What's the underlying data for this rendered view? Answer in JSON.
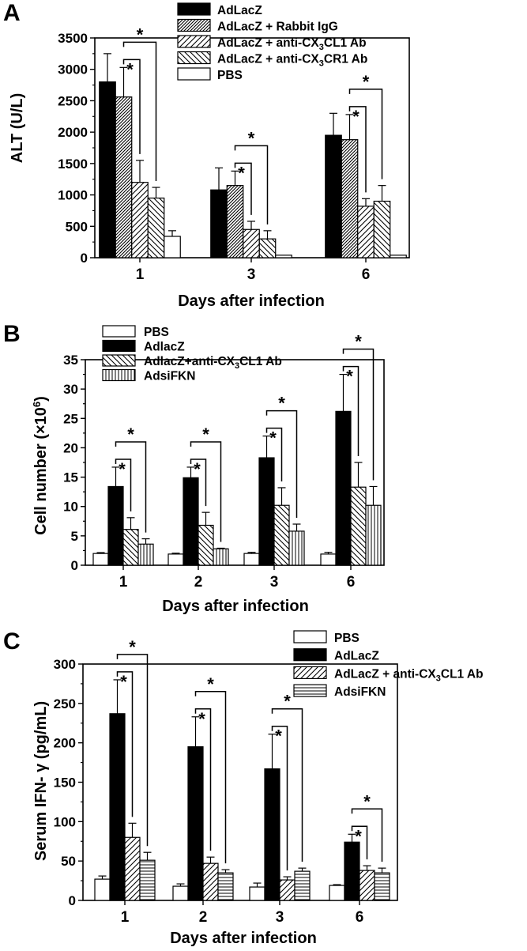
{
  "chart_data": [
    {
      "type": "bar",
      "panel": "A",
      "title": "",
      "xlabel": "Days after infection",
      "ylabel": "ALT (U/L)",
      "ylim": [
        0,
        3500
      ],
      "yticks": [
        0,
        500,
        1000,
        1500,
        2000,
        2500,
        3000,
        3500
      ],
      "categories": [
        "1",
        "3",
        "6"
      ],
      "legend_position": "top-right",
      "series": [
        {
          "name": "AdLacZ",
          "pattern": "solid",
          "values": [
            2800,
            1080,
            1950
          ],
          "errors": [
            450,
            350,
            350
          ]
        },
        {
          "name": "AdLacZ + Rabbit IgG",
          "pattern": "dense-hatch",
          "values": [
            2560,
            1150,
            1880
          ],
          "errors": [
            470,
            230,
            400
          ]
        },
        {
          "name": "AdLacZ + anti-CX3CL1 Ab",
          "sub_parts": [
            "AdLacZ + anti-CX",
            "3",
            "CL1 Ab"
          ],
          "pattern": "hatch-fwd",
          "values": [
            1200,
            450,
            820
          ],
          "errors": [
            350,
            130,
            120
          ]
        },
        {
          "name": "AdLacZ + anti-CX3CR1 Ab",
          "sub_parts": [
            "AdLacZ + anti-CX",
            "3",
            "CR1 Ab"
          ],
          "pattern": "hatch-back",
          "values": [
            950,
            300,
            900
          ],
          "errors": [
            170,
            130,
            250
          ]
        },
        {
          "name": "PBS",
          "pattern": "empty",
          "values": [
            340,
            40,
            40
          ],
          "errors": [
            90,
            0,
            0
          ]
        }
      ],
      "significance": [
        {
          "category": 0,
          "pairs": [
            [
              1,
              2
            ],
            [
              1,
              3
            ]
          ],
          "label": "*"
        },
        {
          "category": 1,
          "pairs": [
            [
              1,
              2
            ],
            [
              1,
              3
            ]
          ],
          "label": "*"
        },
        {
          "category": 2,
          "pairs": [
            [
              1,
              2
            ],
            [
              1,
              3
            ]
          ],
          "label": "*"
        }
      ]
    },
    {
      "type": "bar",
      "panel": "B",
      "title": "",
      "xlabel": "Days after infection",
      "ylabel": "Cell number (×10",
      "ylabel_sup": "6",
      "ylabel_end": ")",
      "ylim": [
        0,
        35
      ],
      "yticks": [
        0,
        5,
        10,
        15,
        20,
        25,
        30,
        35
      ],
      "categories": [
        "1",
        "2",
        "3",
        "6"
      ],
      "legend_position": "top-left",
      "series": [
        {
          "name": "PBS",
          "pattern": "empty",
          "values": [
            2.0,
            1.9,
            2.0,
            1.9
          ],
          "errors": [
            0.15,
            0.15,
            0.2,
            0.3
          ]
        },
        {
          "name": "AdlacZ",
          "pattern": "solid",
          "values": [
            13.4,
            14.9,
            18.3,
            26.2
          ],
          "errors": [
            3.3,
            1.8,
            3.7,
            6.3
          ]
        },
        {
          "name": "AdlacZ+anti-CX3CL1 Ab",
          "sub_parts": [
            "AdlacZ+anti-CX",
            "3",
            "CL1 Ab"
          ],
          "pattern": "hatch-back",
          "values": [
            6.1,
            6.8,
            10.2,
            13.3
          ],
          "errors": [
            2.0,
            2.2,
            3.0,
            4.2
          ]
        },
        {
          "name": "AdsiFKN",
          "pattern": "vertical",
          "values": [
            3.6,
            2.8,
            5.8,
            10.2
          ],
          "errors": [
            0.9,
            0.1,
            1.2,
            3.2
          ]
        }
      ],
      "significance": [
        {
          "category": 0,
          "pairs": [
            [
              1,
              2
            ],
            [
              1,
              3
            ]
          ],
          "label": "*"
        },
        {
          "category": 1,
          "pairs": [
            [
              1,
              2
            ],
            [
              1,
              3
            ]
          ],
          "label": "*"
        },
        {
          "category": 2,
          "pairs": [
            [
              1,
              2
            ],
            [
              1,
              3
            ]
          ],
          "label": "*"
        },
        {
          "category": 3,
          "pairs": [
            [
              1,
              2
            ],
            [
              1,
              3
            ]
          ],
          "label": "*"
        }
      ]
    },
    {
      "type": "bar",
      "panel": "C",
      "title": "",
      "xlabel": "Days after infection",
      "ylabel": "Serum IFN- γ  (pg/mL)",
      "ylim": [
        0,
        300
      ],
      "yticks": [
        0,
        50,
        100,
        150,
        200,
        250,
        300
      ],
      "categories": [
        "1",
        "2",
        "3",
        "6"
      ],
      "legend_position": "top-right",
      "series": [
        {
          "name": "PBS",
          "pattern": "empty",
          "values": [
            27,
            18,
            17,
            19
          ],
          "errors": [
            4,
            3,
            5,
            1
          ]
        },
        {
          "name": "AdLacZ",
          "pattern": "solid",
          "values": [
            237,
            195,
            167,
            74
          ],
          "errors": [
            43,
            38,
            44,
            10
          ]
        },
        {
          "name": "AdLacZ + anti-CX3CL1 Ab",
          "sub_parts": [
            "AdLacZ + anti-CX",
            "3",
            "CL1 Ab"
          ],
          "pattern": "hatch-fwd",
          "values": [
            80,
            47,
            26,
            38
          ],
          "errors": [
            18,
            8,
            4,
            6
          ]
        },
        {
          "name": "AdsiFKN",
          "pattern": "horizontal",
          "values": [
            51,
            35,
            37,
            35
          ],
          "errors": [
            10,
            4,
            4,
            6
          ]
        }
      ],
      "significance": [
        {
          "category": 0,
          "pairs": [
            [
              1,
              2
            ],
            [
              1,
              3
            ]
          ],
          "label": "*"
        },
        {
          "category": 1,
          "pairs": [
            [
              1,
              2
            ],
            [
              1,
              3
            ]
          ],
          "label": "*"
        },
        {
          "category": 2,
          "pairs": [
            [
              1,
              2
            ],
            [
              1,
              3
            ]
          ],
          "label": "*"
        },
        {
          "category": 3,
          "pairs": [
            [
              1,
              2
            ],
            [
              1,
              3
            ]
          ],
          "label": "*"
        }
      ]
    }
  ]
}
